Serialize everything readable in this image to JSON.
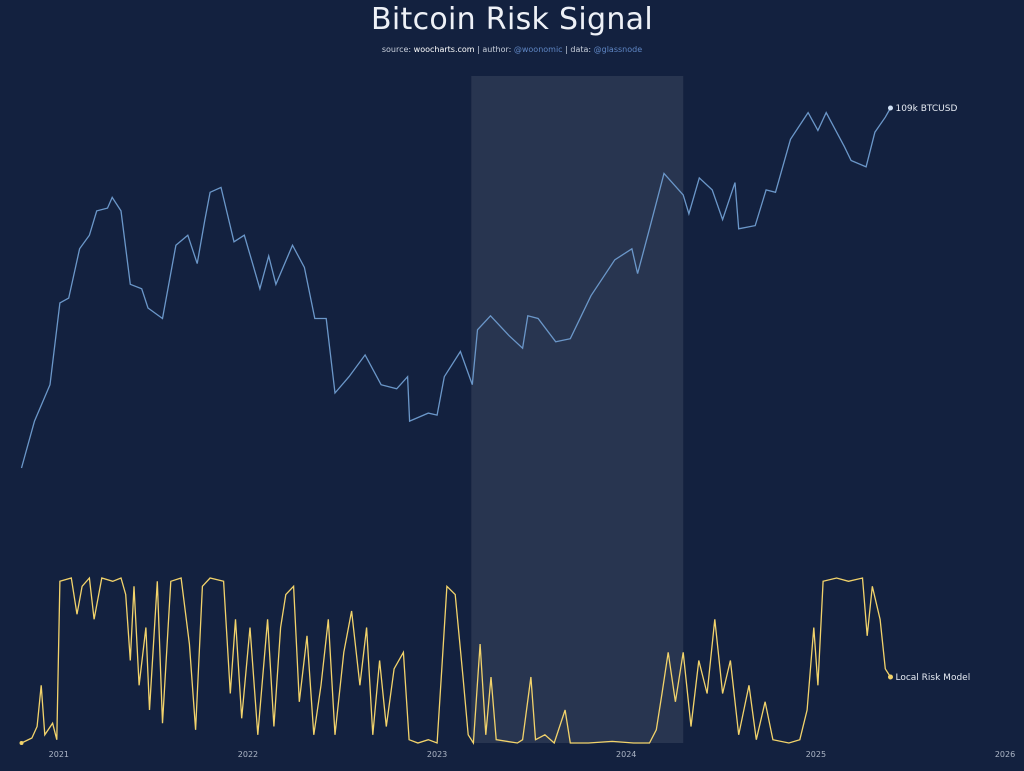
{
  "title": "Bitcoin Risk Signal",
  "subtitle": {
    "source_prefix": "source: ",
    "source": "woocharts.com",
    "author_prefix": " | author: ",
    "author": "@woonomic",
    "data_prefix": " | data: ",
    "data": "@glassnode"
  },
  "colors": {
    "background": "#13213f",
    "price": "#6b97c9",
    "risk": "#f2d36b",
    "highlight": "rgba(255,255,255,0.09)"
  },
  "chart_data": {
    "type": "line",
    "x_ticks": [
      "2021",
      "2022",
      "2023",
      "2024",
      "2025",
      "2026"
    ],
    "xlim": [
      "2020-10-20",
      "2026-01-01"
    ],
    "highlight_range": [
      "2023-03-08",
      "2024-04-20"
    ],
    "series": [
      {
        "name": "BTCUSD",
        "end_label": "109k BTCUSD",
        "scale": "log",
        "points": [
          [
            "2020-10-21",
            12000
          ],
          [
            "2020-11-15",
            16000
          ],
          [
            "2020-12-15",
            20000
          ],
          [
            "2021-01-03",
            33000
          ],
          [
            "2021-01-20",
            34000
          ],
          [
            "2021-02-10",
            46000
          ],
          [
            "2021-03-01",
            50000
          ],
          [
            "2021-03-15",
            58000
          ],
          [
            "2021-04-05",
            59000
          ],
          [
            "2021-04-14",
            63000
          ],
          [
            "2021-05-01",
            58000
          ],
          [
            "2021-05-19",
            37000
          ],
          [
            "2021-06-10",
            36000
          ],
          [
            "2021-06-22",
            32000
          ],
          [
            "2021-07-20",
            30000
          ],
          [
            "2021-08-15",
            47000
          ],
          [
            "2021-09-07",
            50000
          ],
          [
            "2021-09-25",
            42000
          ],
          [
            "2021-10-10",
            55000
          ],
          [
            "2021-10-20",
            65000
          ],
          [
            "2021-11-10",
            67000
          ],
          [
            "2021-12-05",
            48000
          ],
          [
            "2021-12-25",
            50000
          ],
          [
            "2022-01-10",
            42000
          ],
          [
            "2022-01-24",
            36000
          ],
          [
            "2022-02-10",
            44000
          ],
          [
            "2022-02-24",
            37000
          ],
          [
            "2022-03-28",
            47000
          ],
          [
            "2022-04-20",
            41000
          ],
          [
            "2022-05-10",
            30000
          ],
          [
            "2022-06-01",
            30000
          ],
          [
            "2022-06-18",
            19000
          ],
          [
            "2022-07-15",
            21000
          ],
          [
            "2022-08-15",
            24000
          ],
          [
            "2022-09-15",
            20000
          ],
          [
            "2022-10-15",
            19500
          ],
          [
            "2022-11-05",
            21000
          ],
          [
            "2022-11-09",
            16000
          ],
          [
            "2022-12-15",
            16800
          ],
          [
            "2023-01-01",
            16600
          ],
          [
            "2023-01-15",
            21000
          ],
          [
            "2023-02-15",
            24500
          ],
          [
            "2023-03-10",
            20000
          ],
          [
            "2023-03-20",
            28000
          ],
          [
            "2023-04-14",
            30500
          ],
          [
            "2023-05-20",
            27000
          ],
          [
            "2023-06-15",
            25000
          ],
          [
            "2023-06-25",
            30500
          ],
          [
            "2023-07-15",
            30000
          ],
          [
            "2023-08-18",
            26000
          ],
          [
            "2023-09-15",
            26500
          ],
          [
            "2023-10-25",
            34500
          ],
          [
            "2023-12-10",
            43000
          ],
          [
            "2024-01-12",
            46000
          ],
          [
            "2024-01-23",
            39500
          ],
          [
            "2024-02-15",
            52000
          ],
          [
            "2024-03-14",
            73000
          ],
          [
            "2024-04-20",
            64000
          ],
          [
            "2024-05-01",
            57000
          ],
          [
            "2024-05-21",
            71000
          ],
          [
            "2024-06-15",
            66000
          ],
          [
            "2024-07-05",
            55000
          ],
          [
            "2024-07-29",
            69000
          ],
          [
            "2024-08-05",
            52000
          ],
          [
            "2024-09-06",
            53000
          ],
          [
            "2024-09-27",
            66000
          ],
          [
            "2024-10-15",
            65000
          ],
          [
            "2024-11-13",
            90000
          ],
          [
            "2024-12-17",
            106000
          ],
          [
            "2025-01-05",
            95000
          ],
          [
            "2025-01-21",
            106000
          ],
          [
            "2025-02-25",
            86000
          ],
          [
            "2025-03-10",
            79000
          ],
          [
            "2025-04-08",
            76000
          ],
          [
            "2025-04-25",
            94000
          ],
          [
            "2025-05-15",
            103000
          ],
          [
            "2025-05-25",
            109000
          ]
        ]
      },
      {
        "name": "Local Risk Model",
        "end_label": "Local Risk Model",
        "ylim": [
          0,
          1
        ],
        "points": [
          [
            "2020-10-21",
            0.0
          ],
          [
            "2020-11-10",
            0.03
          ],
          [
            "2020-11-20",
            0.1
          ],
          [
            "2020-11-28",
            0.35
          ],
          [
            "2020-12-05",
            0.05
          ],
          [
            "2020-12-20",
            0.12
          ],
          [
            "2020-12-28",
            0.02
          ],
          [
            "2021-01-03",
            0.98
          ],
          [
            "2021-01-25",
            1.0
          ],
          [
            "2021-02-05",
            0.78
          ],
          [
            "2021-02-15",
            0.95
          ],
          [
            "2021-03-01",
            1.0
          ],
          [
            "2021-03-10",
            0.75
          ],
          [
            "2021-03-25",
            1.0
          ],
          [
            "2021-04-15",
            0.98
          ],
          [
            "2021-05-01",
            1.0
          ],
          [
            "2021-05-10",
            0.9
          ],
          [
            "2021-05-19",
            0.5
          ],
          [
            "2021-05-26",
            0.95
          ],
          [
            "2021-06-05",
            0.35
          ],
          [
            "2021-06-18",
            0.7
          ],
          [
            "2021-06-25",
            0.2
          ],
          [
            "2021-07-10",
            0.98
          ],
          [
            "2021-07-20",
            0.12
          ],
          [
            "2021-08-05",
            0.98
          ],
          [
            "2021-08-25",
            1.0
          ],
          [
            "2021-09-10",
            0.6
          ],
          [
            "2021-09-22",
            0.08
          ],
          [
            "2021-10-05",
            0.95
          ],
          [
            "2021-10-20",
            1.0
          ],
          [
            "2021-11-15",
            0.98
          ],
          [
            "2021-11-28",
            0.3
          ],
          [
            "2021-12-08",
            0.75
          ],
          [
            "2021-12-20",
            0.15
          ],
          [
            "2022-01-05",
            0.7
          ],
          [
            "2022-01-20",
            0.05
          ],
          [
            "2022-02-08",
            0.75
          ],
          [
            "2022-02-20",
            0.1
          ],
          [
            "2022-03-05",
            0.7
          ],
          [
            "2022-03-15",
            0.9
          ],
          [
            "2022-03-30",
            0.95
          ],
          [
            "2022-04-10",
            0.25
          ],
          [
            "2022-04-25",
            0.65
          ],
          [
            "2022-05-08",
            0.05
          ],
          [
            "2022-05-22",
            0.35
          ],
          [
            "2022-06-05",
            0.75
          ],
          [
            "2022-06-18",
            0.05
          ],
          [
            "2022-07-05",
            0.55
          ],
          [
            "2022-07-20",
            0.8
          ],
          [
            "2022-08-05",
            0.35
          ],
          [
            "2022-08-18",
            0.7
          ],
          [
            "2022-08-30",
            0.05
          ],
          [
            "2022-09-12",
            0.5
          ],
          [
            "2022-09-25",
            0.1
          ],
          [
            "2022-10-10",
            0.45
          ],
          [
            "2022-10-28",
            0.55
          ],
          [
            "2022-11-08",
            0.02
          ],
          [
            "2022-11-25",
            0.0
          ],
          [
            "2022-12-15",
            0.02
          ],
          [
            "2023-01-01",
            0.0
          ],
          [
            "2023-01-10",
            0.45
          ],
          [
            "2023-01-20",
            0.95
          ],
          [
            "2023-02-05",
            0.9
          ],
          [
            "2023-02-20",
            0.4
          ],
          [
            "2023-03-02",
            0.05
          ],
          [
            "2023-03-12",
            0.0
          ],
          [
            "2023-03-25",
            0.6
          ],
          [
            "2023-04-05",
            0.05
          ],
          [
            "2023-04-15",
            0.4
          ],
          [
            "2023-04-25",
            0.02
          ],
          [
            "2023-06-05",
            0.0
          ],
          [
            "2023-06-15",
            0.02
          ],
          [
            "2023-07-01",
            0.4
          ],
          [
            "2023-07-10",
            0.02
          ],
          [
            "2023-07-28",
            0.05
          ],
          [
            "2023-08-15",
            0.0
          ],
          [
            "2023-09-05",
            0.2
          ],
          [
            "2023-09-15",
            0.0
          ],
          [
            "2023-10-20",
            0.0
          ],
          [
            "2023-12-05",
            0.01
          ],
          [
            "2024-01-15",
            0.0
          ],
          [
            "2024-02-15",
            0.0
          ],
          [
            "2024-02-28",
            0.08
          ],
          [
            "2024-03-10",
            0.3
          ],
          [
            "2024-03-22",
            0.55
          ],
          [
            "2024-04-05",
            0.25
          ],
          [
            "2024-04-20",
            0.55
          ],
          [
            "2024-05-05",
            0.1
          ],
          [
            "2024-05-20",
            0.5
          ],
          [
            "2024-06-05",
            0.3
          ],
          [
            "2024-06-20",
            0.75
          ],
          [
            "2024-07-05",
            0.3
          ],
          [
            "2024-07-20",
            0.5
          ],
          [
            "2024-08-05",
            0.05
          ],
          [
            "2024-08-25",
            0.35
          ],
          [
            "2024-09-08",
            0.02
          ],
          [
            "2024-09-25",
            0.25
          ],
          [
            "2024-10-10",
            0.02
          ],
          [
            "2024-11-10",
            0.0
          ],
          [
            "2024-12-01",
            0.02
          ],
          [
            "2024-12-15",
            0.2
          ],
          [
            "2024-12-28",
            0.7
          ],
          [
            "2025-01-05",
            0.35
          ],
          [
            "2025-01-15",
            0.98
          ],
          [
            "2025-02-10",
            1.0
          ],
          [
            "2025-03-05",
            0.98
          ],
          [
            "2025-04-01",
            1.0
          ],
          [
            "2025-04-10",
            0.65
          ],
          [
            "2025-04-20",
            0.95
          ],
          [
            "2025-05-05",
            0.75
          ],
          [
            "2025-05-15",
            0.45
          ],
          [
            "2025-05-25",
            0.4
          ]
        ]
      }
    ]
  }
}
